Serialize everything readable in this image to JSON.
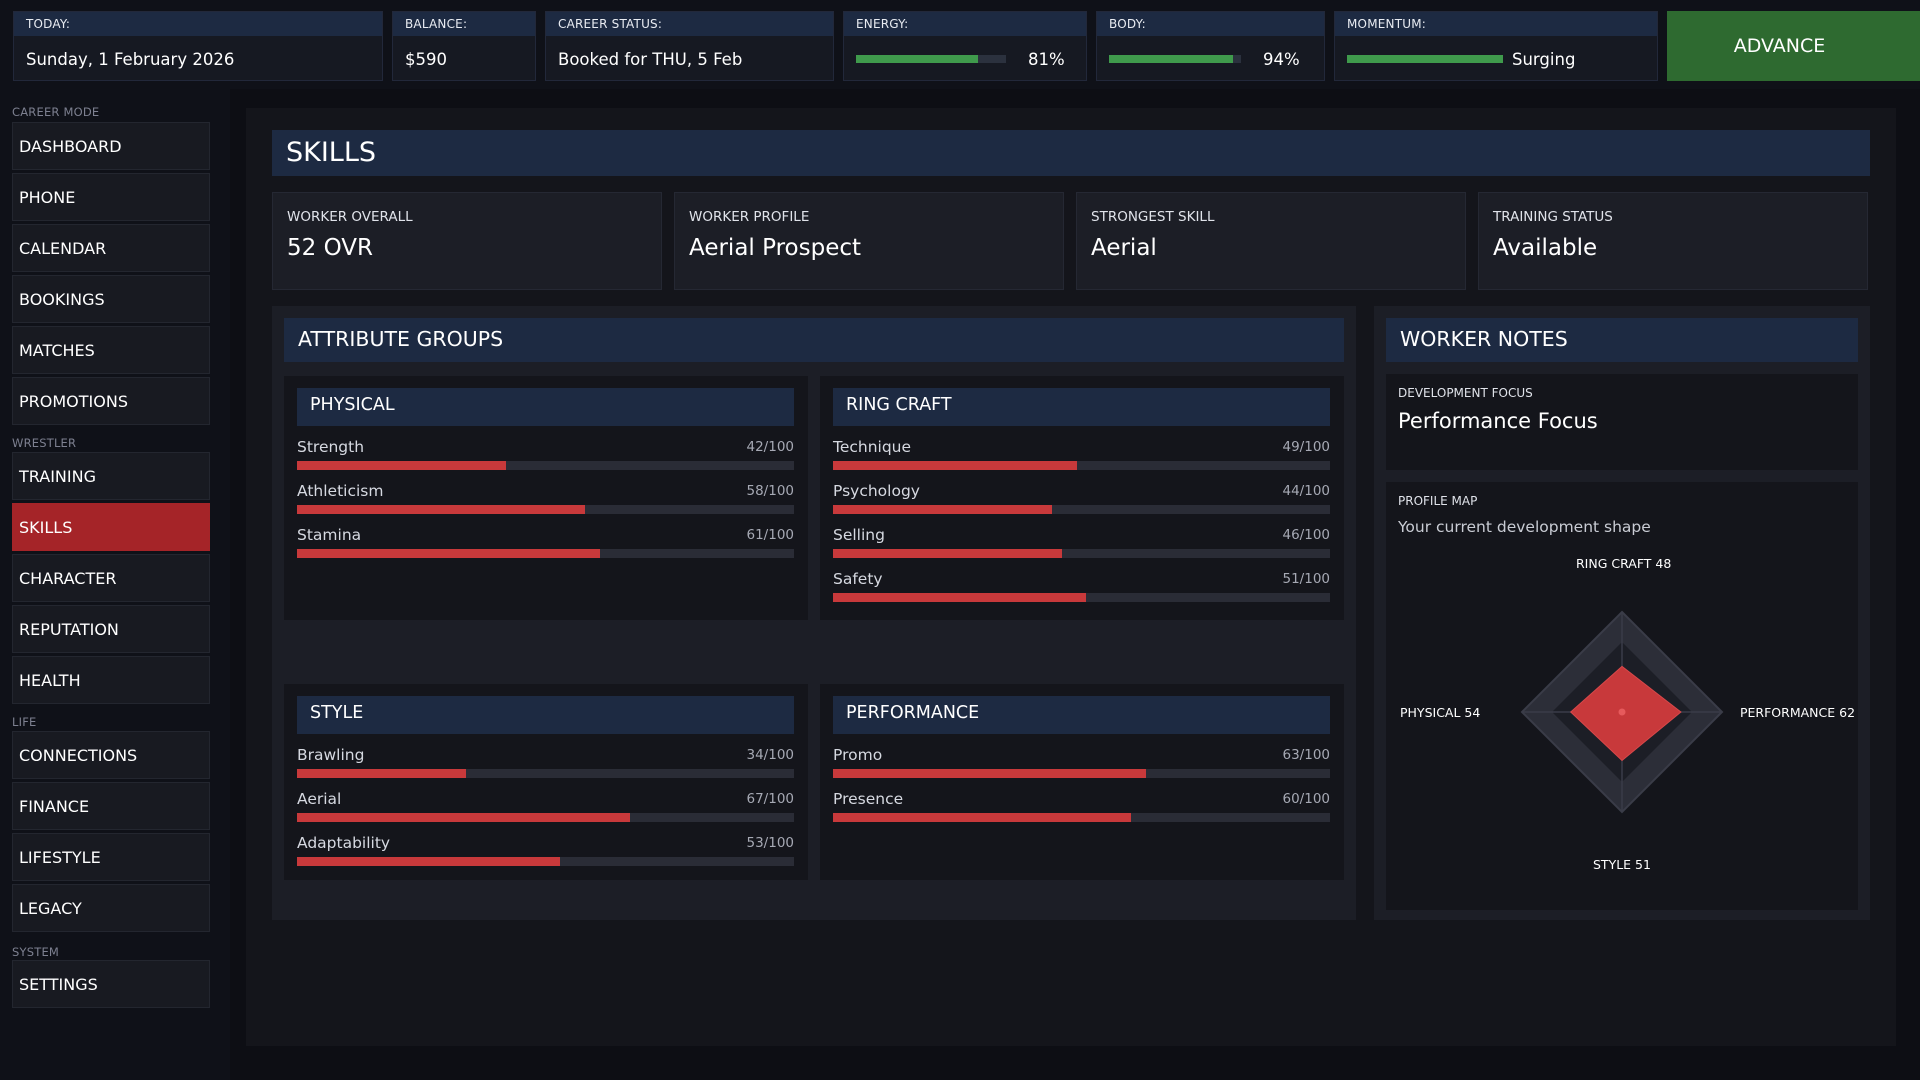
{
  "topbar": {
    "today": {
      "label": "TODAY:",
      "value": "Sunday, 1 February 2026"
    },
    "balance": {
      "label": "BALANCE:",
      "value": "$590"
    },
    "career_status": {
      "label": "CAREER STATUS:",
      "value": "Booked for THU, 5 Feb"
    },
    "energy": {
      "label": "ENERGY:",
      "value": "81%",
      "level": 0.81
    },
    "body": {
      "label": "BODY:",
      "value": "94%",
      "level": 0.94
    },
    "momentum": {
      "label": "MOMENTUM:",
      "value": "Surging",
      "level": 1.0
    },
    "advance_label": "ADVANCE"
  },
  "sidebar": {
    "sections": {
      "career": "CAREER MODE",
      "wrestler": "WRESTLER",
      "life": "LIFE",
      "system": "SYSTEM"
    },
    "items": {
      "dashboard": "DASHBOARD",
      "phone": "PHONE",
      "calendar": "CALENDAR",
      "bookings": "BOOKINGS",
      "matches": "MATCHES",
      "promotions": "PROMOTIONS",
      "training": "TRAINING",
      "skills": "SKILLS",
      "character": "CHARACTER",
      "reputation": "REPUTATION",
      "health": "HEALTH",
      "connections": "CONNECTIONS",
      "finance": "FINANCE",
      "lifestyle": "LIFESTYLE",
      "legacy": "LEGACY",
      "settings": "SETTINGS"
    },
    "active": "SKILLS"
  },
  "page": {
    "title": "SKILLS",
    "cards": [
      {
        "label": "WORKER OVERALL",
        "value": "52 OVR"
      },
      {
        "label": "WORKER PROFILE",
        "value": "Aerial Prospect"
      },
      {
        "label": "STRONGEST SKILL",
        "value": "Aerial"
      },
      {
        "label": "TRAINING STATUS",
        "value": "Available"
      }
    ]
  },
  "attribute_groups": {
    "title": "ATTRIBUTE GROUPS",
    "groups": [
      {
        "name": "PHYSICAL",
        "attributes": [
          {
            "name": "Strength",
            "display": "42/100",
            "value": 42
          },
          {
            "name": "Athleticism",
            "display": "58/100",
            "value": 58
          },
          {
            "name": "Stamina",
            "display": "61/100",
            "value": 61
          }
        ]
      },
      {
        "name": "RING CRAFT",
        "attributes": [
          {
            "name": "Technique",
            "display": "49/100",
            "value": 49
          },
          {
            "name": "Psychology",
            "display": "44/100",
            "value": 44
          },
          {
            "name": "Selling",
            "display": "46/100",
            "value": 46
          },
          {
            "name": "Safety",
            "display": "51/100",
            "value": 51
          }
        ]
      },
      {
        "name": "STYLE",
        "attributes": [
          {
            "name": "Brawling",
            "display": "34/100",
            "value": 34
          },
          {
            "name": "Aerial",
            "display": "67/100",
            "value": 67
          },
          {
            "name": "Adaptability",
            "display": "53/100",
            "value": 53
          }
        ]
      },
      {
        "name": "PERFORMANCE",
        "attributes": [
          {
            "name": "Promo",
            "display": "63/100",
            "value": 63
          },
          {
            "name": "Presence",
            "display": "60/100",
            "value": 60
          }
        ]
      }
    ]
  },
  "worker_notes": {
    "title": "WORKER NOTES",
    "development_focus": {
      "label": "DEVELOPMENT FOCUS",
      "value": "Performance Focus"
    },
    "profile_map": {
      "label": "PROFILE MAP",
      "subtitle": "Your current development shape",
      "axes": [
        {
          "label": "RING CRAFT 48",
          "value": 48
        },
        {
          "label": "PERFORMANCE 62",
          "value": 62
        },
        {
          "label": "STYLE 51",
          "value": 51
        },
        {
          "label": "PHYSICAL 54",
          "value": 54
        }
      ]
    }
  },
  "colors": {
    "accent_red": "#c8393b",
    "active_nav": "#a52428",
    "header_blue": "#1d2a42",
    "meter_green": "#3f9a4c",
    "advance_green": "#2e6a30"
  }
}
